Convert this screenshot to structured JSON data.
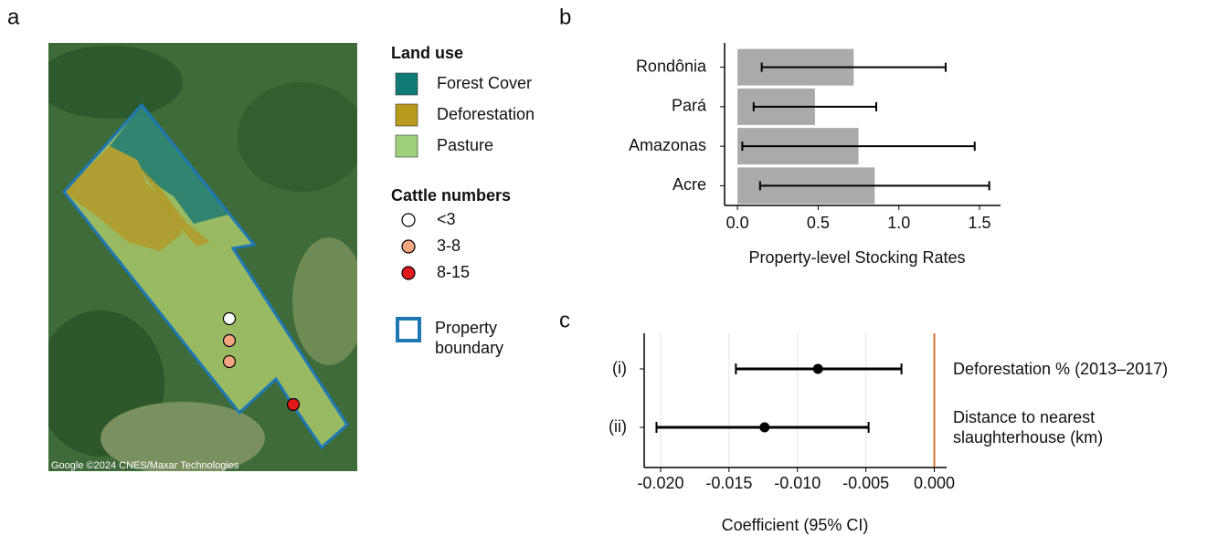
{
  "map": {
    "panel_label": "a",
    "attribution": "Google ©2024 CNES/Maxar Technologies",
    "legend": {
      "land_use_title": "Land use",
      "land_use": [
        {
          "label": "Forest Cover",
          "color": "#127a74"
        },
        {
          "label": "Deforestation",
          "color": "#b89a1c"
        },
        {
          "label": "Pasture",
          "color": "#9fd07c"
        }
      ],
      "cattle_title": "Cattle numbers",
      "cattle": [
        {
          "label": "<3",
          "color": "#ffffff"
        },
        {
          "label": "3-8",
          "color": "#f4a582"
        },
        {
          "label": "8-15",
          "color": "#e31a1c"
        }
      ],
      "boundary_label": "Property boundary",
      "boundary_color": "#1f78b4"
    }
  },
  "chart_data": [
    {
      "type": "bar",
      "panel_label": "b",
      "orientation": "horizontal",
      "categories": [
        "Rondônia",
        "Pará",
        "Amazonas",
        "Acre"
      ],
      "values": [
        0.72,
        0.48,
        0.75,
        0.85
      ],
      "errors": [
        0.57,
        0.38,
        0.72,
        0.71
      ],
      "color": "#aaaaaa",
      "x_label": "Property-level Stocking Rates",
      "xlim": [
        -0.08,
        1.63
      ],
      "xticks": [
        {
          "value": 0,
          "label": "0.0"
        },
        0.5,
        {
          "value": 1,
          "label": "1.0"
        },
        1.5
      ]
    },
    {
      "type": "point",
      "panel_label": "c",
      "categories": [
        "(i)",
        "(ii)"
      ],
      "labels": [
        "Deforestation % (2013–2017)",
        "Distance to nearest slaughterhouse (km)"
      ],
      "values": [
        -0.0085,
        -0.0124
      ],
      "lower": [
        -0.0145,
        -0.0203
      ],
      "upper": [
        -0.0024,
        -0.0048
      ],
      "color": "#000000",
      "reference_line": 0,
      "reference_color": "#d4733a",
      "x_label": "Coefficient (95% CI)",
      "grid": true,
      "xlim": [
        -0.0212,
        0.0009
      ],
      "xticks": [
        {
          "value": -0.02,
          "label": "-0.020"
        },
        -0.015,
        {
          "value": -0.01,
          "label": "-0.010"
        },
        -0.005,
        {
          "value": 0,
          "label": "0.000"
        }
      ]
    }
  ]
}
